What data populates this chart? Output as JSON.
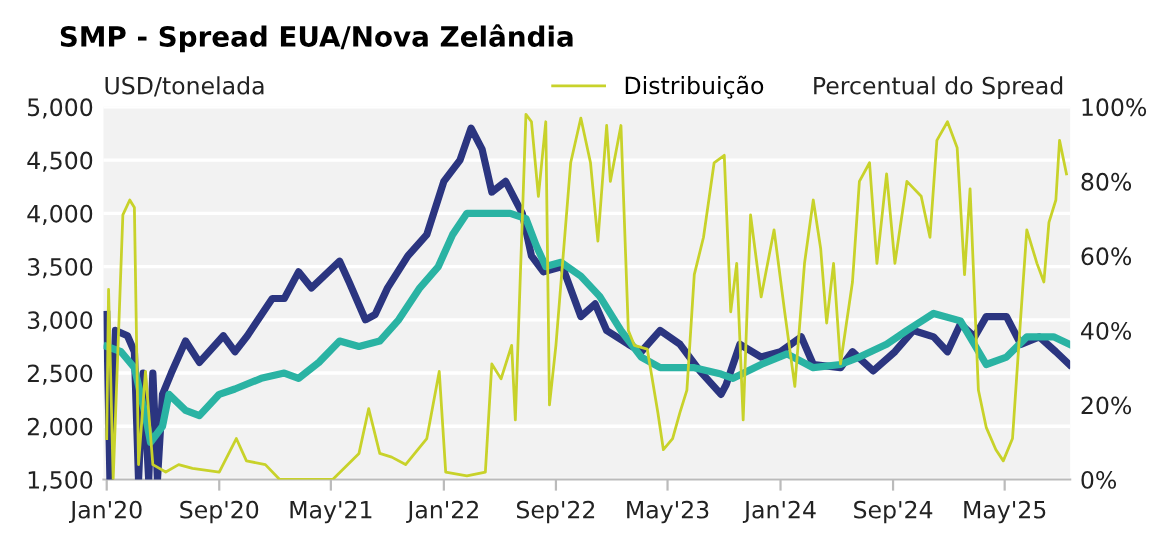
{
  "chart_data": {
    "type": "line",
    "title": "SMP - Spread EUA/Nova Zelândia",
    "ylabel": "USD/tonelada",
    "y2label": "Percentual do Spread",
    "xlim": [
      "2019-12-25",
      "2025-09-20"
    ],
    "xticks": [
      {
        "value": "2020-01-01",
        "label": "Jan'20"
      },
      {
        "value": "2020-09-01",
        "label": "Sep'20"
      },
      {
        "value": "2021-05-01",
        "label": "May'21"
      },
      {
        "value": "2022-01-01",
        "label": "Jan'22"
      },
      {
        "value": "2022-09-01",
        "label": "Sep'22"
      },
      {
        "value": "2023-05-01",
        "label": "May'23"
      },
      {
        "value": "2024-01-01",
        "label": "Jan'24"
      },
      {
        "value": "2024-09-01",
        "label": "Sep'24"
      },
      {
        "value": "2025-05-01",
        "label": "May'25"
      }
    ],
    "ylim": [
      1500,
      5000
    ],
    "yticks": [
      {
        "value": 1500,
        "label": "1,500"
      },
      {
        "value": 2000,
        "label": "2,000"
      },
      {
        "value": 2500,
        "label": "2,500"
      },
      {
        "value": 3000,
        "label": "3,000"
      },
      {
        "value": 3500,
        "label": "3,500"
      },
      {
        "value": 4000,
        "label": "4,000"
      },
      {
        "value": 4500,
        "label": "4,500"
      },
      {
        "value": 5000,
        "label": "5,000"
      }
    ],
    "y2lim": [
      0,
      100
    ],
    "y2ticks": [
      {
        "value": 0,
        "label": "0%"
      },
      {
        "value": 20,
        "label": "20%"
      },
      {
        "value": 40,
        "label": "40%"
      },
      {
        "value": 60,
        "label": "60%"
      },
      {
        "value": 80,
        "label": "80%"
      },
      {
        "value": 100,
        "label": "100%"
      }
    ],
    "grid": "y",
    "legend": "top",
    "marker": "none",
    "line_style": "solid",
    "series": [
      {
        "color": "#2b3580",
        "x": [
          "2020-01-01",
          "2020-01-08",
          "2020-01-20",
          "2020-02-15",
          "2020-03-01",
          "2020-03-10",
          "2020-03-20",
          "2020-04-01",
          "2020-04-10",
          "2020-04-20",
          "2020-05-01",
          "2020-05-20",
          "2020-06-20",
          "2020-07-20",
          "2020-09-10",
          "2020-10-05",
          "2020-11-01",
          "2020-12-25",
          "2021-01-20",
          "2021-02-20",
          "2021-03-20",
          "2021-05-20",
          "2021-06-10",
          "2021-07-15",
          "2021-08-05",
          "2021-09-01",
          "2021-10-15",
          "2021-11-25",
          "2022-01-01",
          "2022-02-05",
          "2022-03-01",
          "2022-03-25",
          "2022-04-15",
          "2022-05-15",
          "2022-06-20",
          "2022-07-10",
          "2022-08-05",
          "2022-09-15",
          "2022-10-25",
          "2022-11-25",
          "2022-12-20",
          "2023-02-05",
          "2023-03-05",
          "2023-04-15",
          "2023-05-28",
          "2023-07-10",
          "2023-08-25",
          "2023-09-05",
          "2023-10-05",
          "2023-11-20",
          "2024-01-01",
          "2024-02-15",
          "2024-03-12",
          "2024-05-10",
          "2024-06-05",
          "2024-07-20",
          "2024-09-05",
          "2024-10-15",
          "2024-11-28",
          "2024-12-28",
          "2025-01-25",
          "2025-02-25",
          "2025-03-22",
          "2025-05-05",
          "2025-06-05",
          "2025-07-15",
          "2025-08-20",
          "2025-09-18"
        ],
        "values": [
          3050,
          1500,
          2900,
          2850,
          2700,
          1500,
          2500,
          1500,
          2500,
          1500,
          2300,
          2500,
          2800,
          2600,
          2850,
          2700,
          2850,
          3200,
          3200,
          3450,
          3300,
          3550,
          3350,
          3000,
          3050,
          3300,
          3600,
          3800,
          4300,
          4500,
          4800,
          4600,
          4200,
          4300,
          4000,
          3600,
          3450,
          3500,
          3030,
          3150,
          2900,
          2770,
          2700,
          2900,
          2770,
          2520,
          2300,
          2390,
          2770,
          2650,
          2700,
          2840,
          2580,
          2550,
          2700,
          2520,
          2700,
          2900,
          2840,
          2700,
          2960,
          2840,
          3030,
          3030,
          2770,
          2840,
          2700,
          2580
        ]
      },
      {
        "color": "#2ab3a3",
        "x": [
          "2020-01-01",
          "2020-02-01",
          "2020-03-01",
          "2020-03-25",
          "2020-04-05",
          "2020-05-01",
          "2020-05-15",
          "2020-06-20",
          "2020-07-20",
          "2020-09-01",
          "2020-10-05",
          "2020-12-01",
          "2021-01-20",
          "2021-02-20",
          "2021-04-05",
          "2021-05-20",
          "2021-07-01",
          "2021-08-15",
          "2021-09-25",
          "2021-11-10",
          "2021-12-20",
          "2022-01-20",
          "2022-02-20",
          "2022-04-15",
          "2022-05-25",
          "2022-06-28",
          "2022-07-20",
          "2022-08-10",
          "2022-09-12",
          "2022-10-25",
          "2022-12-05",
          "2023-01-20",
          "2023-03-05",
          "2023-04-15",
          "2023-06-28",
          "2023-08-25",
          "2023-09-20",
          "2023-11-20",
          "2024-01-15",
          "2024-03-12",
          "2024-05-10",
          "2024-06-20",
          "2024-08-18",
          "2024-10-01",
          "2024-11-28",
          "2025-01-25",
          "2025-03-22",
          "2025-05-05",
          "2025-06-18",
          "2025-08-15",
          "2025-09-18"
        ],
        "values": [
          2750,
          2700,
          2550,
          2100,
          1850,
          2000,
          2300,
          2150,
          2100,
          2300,
          2350,
          2450,
          2500,
          2450,
          2600,
          2800,
          2750,
          2800,
          3000,
          3300,
          3500,
          3800,
          4000,
          4000,
          4000,
          3950,
          3700,
          3500,
          3540,
          3410,
          3220,
          2900,
          2650,
          2550,
          2550,
          2490,
          2450,
          2580,
          2680,
          2550,
          2580,
          2650,
          2770,
          2900,
          3060,
          2990,
          2580,
          2650,
          2840,
          2840,
          2770
        ]
      },
      {
        "name": "Distribuição",
        "axis": "y2",
        "color": "#c8d22a",
        "x": [
          "2020-01-01",
          "2020-01-05",
          "2020-01-15",
          "2020-02-05",
          "2020-02-20",
          "2020-03-01",
          "2020-03-10",
          "2020-03-25",
          "2020-04-10",
          "2020-05-08",
          "2020-06-05",
          "2020-07-05",
          "2020-09-01",
          "2020-10-08",
          "2020-10-30",
          "2020-12-10",
          "2021-01-10",
          "2021-05-05",
          "2021-07-01",
          "2021-07-22",
          "2021-08-15",
          "2021-09-10",
          "2021-10-10",
          "2021-11-25",
          "2021-12-22",
          "2022-01-05",
          "2022-02-20",
          "2022-04-01",
          "2022-04-15",
          "2022-05-05",
          "2022-05-28",
          "2022-06-05",
          "2022-06-28",
          "2022-07-10",
          "2022-07-25",
          "2022-08-10",
          "2022-08-18",
          "2022-09-01",
          "2022-10-03",
          "2022-10-25",
          "2022-11-15",
          "2022-12-01",
          "2022-12-20",
          "2022-12-28",
          "2023-01-20",
          "2023-02-05",
          "2023-02-18",
          "2023-03-18",
          "2023-04-10",
          "2023-04-22",
          "2023-05-12",
          "2023-05-28",
          "2023-06-12",
          "2023-06-28",
          "2023-07-18",
          "2023-08-10",
          "2023-09-01",
          "2023-09-15",
          "2023-09-28",
          "2023-10-12",
          "2023-10-28",
          "2023-11-20",
          "2023-12-18",
          "2024-01-10",
          "2024-02-01",
          "2024-02-22",
          "2024-03-12",
          "2024-03-28",
          "2024-04-10",
          "2024-04-25",
          "2024-05-10",
          "2024-06-05",
          "2024-06-20",
          "2024-07-12",
          "2024-07-28",
          "2024-08-18",
          "2024-09-05",
          "2024-10-01",
          "2024-11-01",
          "2024-11-20",
          "2024-12-05",
          "2024-12-28",
          "2025-01-18",
          "2025-02-03",
          "2025-02-15",
          "2025-03-05",
          "2025-03-22",
          "2025-04-12",
          "2025-04-28",
          "2025-05-18",
          "2025-06-05",
          "2025-06-18",
          "2025-07-10",
          "2025-07-25",
          "2025-08-05",
          "2025-08-20",
          "2025-08-28",
          "2025-09-12"
        ],
        "values": [
          11,
          51,
          0,
          71,
          75,
          73,
          4,
          29,
          4,
          2,
          4,
          3,
          2,
          11,
          5,
          4,
          0,
          0,
          7,
          19,
          7,
          6,
          4,
          11,
          29,
          2,
          1,
          2,
          31,
          27,
          36,
          16,
          98,
          96,
          76,
          96,
          20,
          36,
          85,
          97,
          85,
          64,
          95,
          80,
          95,
          40,
          36,
          35,
          18,
          8,
          11,
          18,
          24,
          55,
          65,
          85,
          87,
          45,
          58,
          16,
          71,
          49,
          67,
          45,
          25,
          58,
          75,
          62,
          42,
          58,
          31,
          53,
          80,
          85,
          58,
          82,
          58,
          80,
          76,
          65,
          91,
          96,
          89,
          55,
          78,
          24,
          14,
          8,
          5,
          11,
          44,
          67,
          58,
          53,
          69,
          75,
          91,
          82
        ]
      }
    ]
  }
}
